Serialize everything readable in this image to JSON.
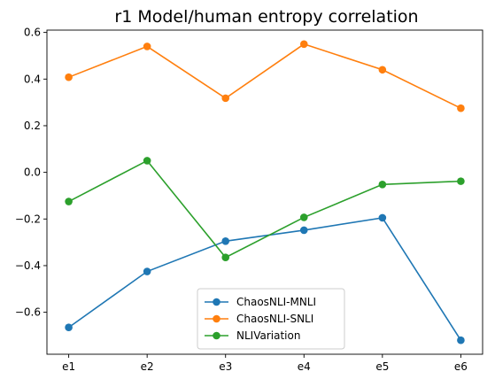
{
  "chart_data": {
    "type": "line",
    "title": "r1 Model/human entropy correlation",
    "xlabel": "",
    "ylabel": "",
    "categories": [
      "e1",
      "e2",
      "e3",
      "e4",
      "e5",
      "e6"
    ],
    "ylim": [
      -0.78,
      0.61
    ],
    "yticks": [
      -0.6,
      -0.4,
      -0.2,
      0.0,
      0.2,
      0.4,
      0.6
    ],
    "ytick_labels": [
      "−0.6",
      "−0.4",
      "−0.2",
      "0.0",
      "0.2",
      "0.4",
      "0.6"
    ],
    "grid": false,
    "legend_position": "lower center",
    "series": [
      {
        "name": "ChaosNLI-MNLI",
        "color": "#1f77b4",
        "marker": "circle",
        "values": [
          -0.665,
          -0.425,
          -0.295,
          -0.248,
          -0.195,
          -0.72
        ]
      },
      {
        "name": "ChaosNLI-SNLI",
        "color": "#ff7f0e",
        "marker": "circle",
        "values": [
          0.408,
          0.54,
          0.318,
          0.55,
          0.44,
          0.275
        ]
      },
      {
        "name": "NLIVariation",
        "color": "#2ca02c",
        "marker": "circle",
        "values": [
          -0.125,
          0.05,
          -0.365,
          -0.193,
          -0.052,
          -0.038
        ]
      }
    ]
  }
}
